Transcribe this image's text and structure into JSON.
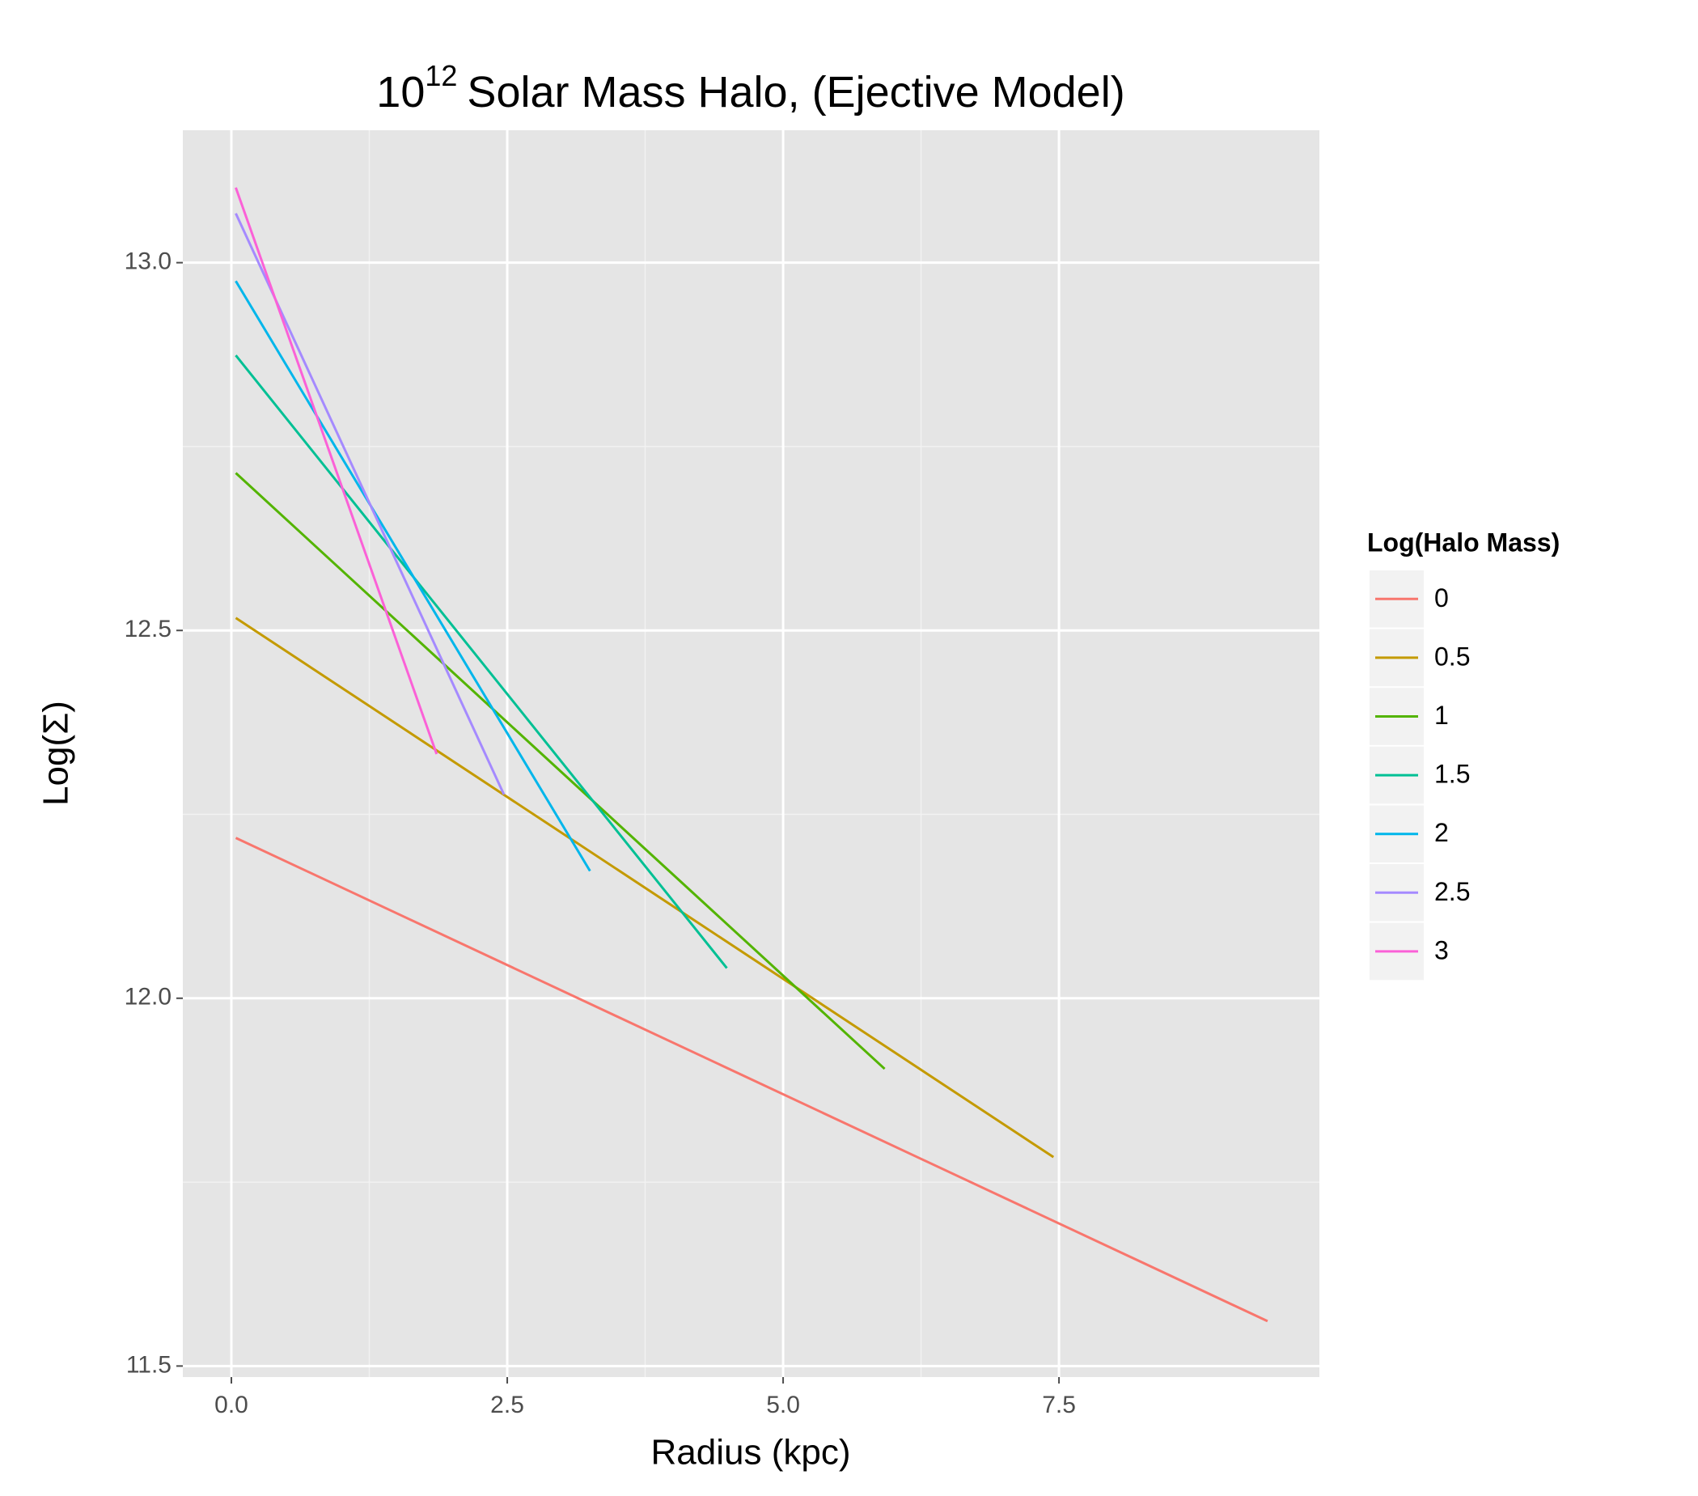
{
  "chart_data": {
    "type": "line",
    "title": {
      "base": "10",
      "exponent": "12",
      "text": "Solar Mass Halo, (Ejective Model)"
    },
    "x_label": "Radius (kpc)",
    "y_label": "Log(Σ)",
    "legend_title": "Log(Halo Mass)",
    "legend": "right",
    "grid": true,
    "xlim": [
      -0.44,
      9.86
    ],
    "ylim": [
      11.485,
      13.18
    ],
    "xticks": [
      {
        "value": 0,
        "label": "0.0"
      },
      2.5,
      {
        "value": 5,
        "label": "5.0"
      },
      7.5
    ],
    "yticks": [
      11.5,
      {
        "value": 12,
        "label": "12.0"
      },
      12.5,
      {
        "value": 13,
        "label": "13.0"
      }
    ],
    "series": [
      {
        "name": "0",
        "color": "#F8766D",
        "x": [
          0.04,
          9.39
        ],
        "values": [
          12.218,
          11.561
        ]
      },
      {
        "name": "0.5",
        "color": "#C49A00",
        "x": [
          0.04,
          7.45
        ],
        "values": [
          12.517,
          11.784
        ]
      },
      {
        "name": "1",
        "color": "#53B400",
        "x": [
          0.04,
          5.92
        ],
        "values": [
          12.714,
          11.904
        ]
      },
      {
        "name": "1.5",
        "color": "#00C094",
        "x": [
          0.04,
          4.49
        ],
        "values": [
          12.874,
          12.041
        ]
      },
      {
        "name": "2",
        "color": "#00B6EB",
        "x": [
          0.04,
          3.25
        ],
        "values": [
          12.975,
          12.173
        ]
      },
      {
        "name": "2.5",
        "color": "#A58AFF",
        "x": [
          0.04,
          2.47
        ],
        "values": [
          13.067,
          12.277
        ]
      },
      {
        "name": "3",
        "color": "#FB61D7",
        "x": [
          0.04,
          1.86
        ],
        "values": [
          13.102,
          12.332
        ]
      }
    ]
  }
}
